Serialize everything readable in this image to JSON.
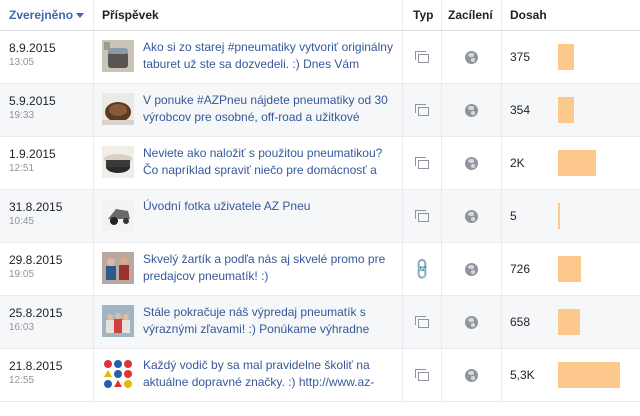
{
  "header": {
    "published": "Zverejněno",
    "post": "Příspěvek",
    "type": "Typ",
    "targeting": "Zacílení",
    "reach": "Dosah"
  },
  "rows": [
    {
      "date": "8.9.2015",
      "time": "13:05",
      "text": "Ako si zo starej #pneumatiky vytvoriť originálny taburet už ste sa dozvedeli. :) Dnes Vám",
      "type_icon": "photo-icon",
      "reach": "375",
      "reach_value": 375,
      "thumb": "stool"
    },
    {
      "date": "5.9.2015",
      "time": "19:33",
      "text": "V ponuke #AZPneu nájdete pneumatiky od 30 výrobcov pre osobné, off-road a užitkové",
      "type_icon": "photo-icon",
      "reach": "354",
      "reach_value": 354,
      "thumb": "tires"
    },
    {
      "date": "1.9.2015",
      "time": "12:51",
      "text": "Neviete ako naložiť s použitou pneumatikou? Čo napríklad spraviť niečo pre domácnosť a",
      "type_icon": "photo-icon",
      "reach": "2K",
      "reach_value": 2000,
      "thumb": "table"
    },
    {
      "date": "31.8.2015",
      "time": "10:45",
      "text": "Úvodní fotka uživatele AZ Pneu",
      "type_icon": "photo-icon",
      "reach": "5",
      "reach_value": 5,
      "thumb": "car"
    },
    {
      "date": "29.8.2015",
      "time": "19:05",
      "text": "Skvelý žartík a podľa nás aj skvelé promo pre predajcov pneumatík! :)",
      "type_icon": "link-icon",
      "reach": "726",
      "reach_value": 726,
      "thumb": "people"
    },
    {
      "date": "25.8.2015",
      "time": "16:03",
      "text": "Stále pokračuje náš výpredaj pneumatík s výraznými zľavami! :) Ponúkame výhradne",
      "type_icon": "photo-icon",
      "reach": "658",
      "reach_value": 658,
      "thumb": "group"
    },
    {
      "date": "21.8.2015",
      "time": "12:55",
      "text": "Každý vodič by sa mal pravidelne školiť na aktuálne dopravné značky. :) http://www.az-",
      "type_icon": "photo-icon",
      "reach": "5,3K",
      "reach_value": 5300,
      "thumb": "signs"
    }
  ],
  "targeting_icon": "globe-icon",
  "colors": {
    "bar": "#fcc88c",
    "link": "#365899",
    "header_sort": "#4267b2"
  }
}
